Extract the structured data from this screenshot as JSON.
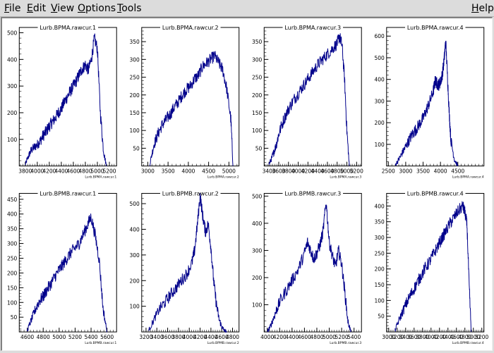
{
  "menu": {
    "file": "File",
    "edit": "Edit",
    "view": "View",
    "options": "Options",
    "tools": "Tools",
    "help": "Help"
  },
  "colors": {
    "series": "#00008b",
    "axis": "#000000",
    "background": "#ffffff"
  },
  "chart_data": [
    {
      "type": "line",
      "title": "Lurb.BPMA.rawcur.1",
      "xlabel": "Lurb.BPMA.rawcur.1",
      "xlim": [
        3700,
        5320
      ],
      "ylim": [
        0,
        520
      ],
      "xticks": [
        "3800",
        "4000",
        "4200",
        "4400",
        "4600",
        "4800",
        "5000",
        "5200"
      ],
      "yticks": [
        "100",
        "200",
        "300",
        "400",
        "500"
      ],
      "x": [
        3800,
        3850,
        3900,
        3950,
        4000,
        4050,
        4100,
        4150,
        4200,
        4250,
        4300,
        4350,
        4400,
        4450,
        4500,
        4550,
        4600,
        4650,
        4700,
        4750,
        4800,
        4850,
        4900,
        4950,
        5000,
        5050,
        5100,
        5150
      ],
      "y": [
        5,
        35,
        60,
        70,
        80,
        95,
        115,
        130,
        150,
        165,
        180,
        200,
        215,
        240,
        260,
        280,
        300,
        320,
        345,
        365,
        380,
        360,
        400,
        480,
        440,
        200,
        60,
        0
      ]
    },
    {
      "type": "line",
      "title": "Lurb.BPMA.rawcur.2",
      "xlabel": "Lurb.BPMA.rawcur.2",
      "xlim": [
        2850,
        5250
      ],
      "ylim": [
        0,
        390
      ],
      "xticks": [
        "3000",
        "3500",
        "4000",
        "4500",
        "5000"
      ],
      "yticks": [
        "50",
        "100",
        "150",
        "200",
        "250",
        "300",
        "350"
      ],
      "x": [
        3050,
        3150,
        3250,
        3350,
        3450,
        3550,
        3650,
        3750,
        3850,
        3950,
        4050,
        4150,
        4250,
        4350,
        4450,
        4550,
        4650,
        4750,
        4850,
        4950,
        5050,
        5100
      ],
      "y": [
        5,
        60,
        90,
        115,
        130,
        145,
        165,
        180,
        200,
        215,
        225,
        245,
        255,
        280,
        290,
        300,
        310,
        290,
        270,
        215,
        130,
        0
      ]
    },
    {
      "type": "line",
      "title": "Lurb.BPMA.rawcur.3",
      "xlabel": "Lurb.BPMA.rawcur.3",
      "xlim": [
        3300,
        5300
      ],
      "ylim": [
        0,
        390
      ],
      "xticks": [
        "3400",
        "3600",
        "3800",
        "4000",
        "4200",
        "4400",
        "4600",
        "4800",
        "5000",
        "5200"
      ],
      "yticks": [
        "50",
        "100",
        "150",
        "200",
        "250",
        "300",
        "350"
      ],
      "x": [
        3400,
        3450,
        3500,
        3550,
        3600,
        3700,
        3800,
        3900,
        4000,
        4100,
        4200,
        4300,
        4400,
        4500,
        4600,
        4700,
        4800,
        4850,
        4900,
        4950,
        5000,
        5050
      ],
      "y": [
        5,
        20,
        40,
        60,
        90,
        130,
        160,
        185,
        205,
        225,
        245,
        265,
        285,
        300,
        315,
        330,
        345,
        365,
        340,
        250,
        100,
        0
      ]
    },
    {
      "type": "line",
      "title": "Lurb.BPMA.rawcur.4",
      "xlabel": "Lurb.BPMA.rawcur.4",
      "xlim": [
        2450,
        5250
      ],
      "ylim": [
        0,
        640
      ],
      "xticks": [
        "2500",
        "3000",
        "3500",
        "4000",
        "4500"
      ],
      "yticks": [
        "100",
        "200",
        "300",
        "400",
        "500",
        "600"
      ],
      "x": [
        2700,
        2800,
        2900,
        3000,
        3100,
        3200,
        3300,
        3400,
        3500,
        3600,
        3700,
        3800,
        3850,
        3900,
        3950,
        4000,
        4050,
        4100,
        4150,
        4200,
        4250,
        4300,
        4400,
        4500
      ],
      "y": [
        5,
        30,
        60,
        90,
        120,
        150,
        170,
        195,
        220,
        260,
        300,
        350,
        395,
        380,
        375,
        390,
        420,
        480,
        580,
        420,
        250,
        120,
        30,
        0
      ]
    },
    {
      "type": "line",
      "title": "Lurb.BPMB.rawcur.1",
      "xlabel": "Lurb.BPMB.rawcur.1",
      "xlim": [
        4500,
        5720
      ],
      "ylim": [
        0,
        470
      ],
      "xticks": [
        "4600",
        "4800",
        "5000",
        "5200",
        "5400",
        "5600"
      ],
      "yticks": [
        "50",
        "100",
        "150",
        "200",
        "250",
        "300",
        "350",
        "400",
        "450"
      ],
      "x": [
        4600,
        4650,
        4700,
        4750,
        4800,
        4850,
        4900,
        4950,
        5000,
        5050,
        5100,
        5150,
        5200,
        5250,
        5300,
        5350,
        5400,
        5450,
        5500,
        5550,
        5600
      ],
      "y": [
        5,
        40,
        75,
        105,
        120,
        145,
        165,
        190,
        210,
        230,
        250,
        270,
        285,
        300,
        330,
        360,
        390,
        330,
        250,
        80,
        0
      ]
    },
    {
      "type": "line",
      "title": "Lurb.BPMB.rawcur.2",
      "xlabel": "Lurb.BPMB.rawcur.2",
      "xlim": [
        3120,
        4920
      ],
      "ylim": [
        0,
        540
      ],
      "xticks": [
        "3200",
        "3400",
        "3600",
        "3800",
        "4000",
        "4200",
        "4400",
        "4600",
        "4800"
      ],
      "yticks": [
        "100",
        "200",
        "300",
        "400",
        "500"
      ],
      "x": [
        3250,
        3350,
        3450,
        3550,
        3650,
        3750,
        3850,
        3950,
        4050,
        4100,
        4150,
        4200,
        4250,
        4300,
        4350,
        4400,
        4450,
        4500,
        4550,
        4600,
        4650,
        4700
      ],
      "y": [
        5,
        50,
        90,
        115,
        145,
        170,
        200,
        225,
        270,
        320,
        420,
        530,
        450,
        390,
        420,
        330,
        200,
        110,
        50,
        20,
        5,
        0
      ]
    },
    {
      "type": "line",
      "title": "Lurb.BPMB.rawcur.3",
      "xlabel": "Lurb.BPMB.rawcur.3",
      "xlim": [
        3950,
        5520
      ],
      "ylim": [
        0,
        510
      ],
      "xticks": [
        "4000",
        "4200",
        "4400",
        "4600",
        "4800",
        "5000",
        "5200",
        "5400"
      ],
      "yticks": [
        "100",
        "200",
        "300",
        "400",
        "500"
      ],
      "x": [
        4000,
        4050,
        4100,
        4150,
        4200,
        4300,
        4400,
        4500,
        4600,
        4650,
        4700,
        4750,
        4800,
        4850,
        4900,
        4950,
        5000,
        5050,
        5100,
        5150,
        5200,
        5250,
        5300,
        5350
      ],
      "y": [
        0,
        20,
        50,
        80,
        110,
        150,
        190,
        230,
        290,
        330,
        300,
        270,
        290,
        320,
        370,
        480,
        330,
        280,
        240,
        300,
        250,
        150,
        40,
        0
      ]
    },
    {
      "type": "line",
      "title": "Lurb.BPMB.rawcur.4",
      "xlabel": "Lurb.BPMB.rawcur.4",
      "xlim": [
        2950,
        5250
      ],
      "ylim": [
        0,
        440
      ],
      "xticks": [
        "3000",
        "3200",
        "3400",
        "3600",
        "3800",
        "4000",
        "4200",
        "4400",
        "4600",
        "4800",
        "5000",
        "5200"
      ],
      "yticks": [
        "50",
        "100",
        "150",
        "200",
        "250",
        "300",
        "350",
        "400"
      ],
      "x": [
        3150,
        3250,
        3350,
        3450,
        3550,
        3650,
        3750,
        3850,
        3950,
        4050,
        4150,
        4250,
        4350,
        4450,
        4550,
        4650,
        4750,
        4800,
        4850,
        4900,
        4950
      ],
      "y": [
        5,
        40,
        70,
        100,
        125,
        150,
        175,
        200,
        220,
        245,
        270,
        295,
        320,
        345,
        365,
        385,
        400,
        380,
        340,
        150,
        0
      ]
    }
  ]
}
